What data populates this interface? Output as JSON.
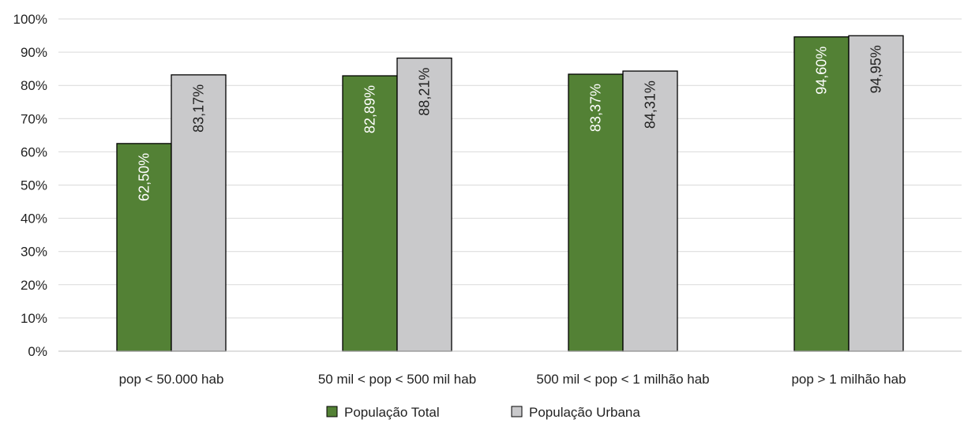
{
  "chart_data": {
    "type": "bar",
    "categories": [
      "pop < 50.000 hab",
      "50 mil < pop < 500 mil hab",
      "500 mil < pop < 1 milhão hab",
      "pop > 1 milhão hab"
    ],
    "series": [
      {
        "name": "População Total",
        "values": [
          62.5,
          82.89,
          83.37,
          94.6
        ],
        "labels": [
          "62,50%",
          "82,89%",
          "83,37%",
          "94,60%"
        ],
        "color": "#538135",
        "label_color": "#ffffff"
      },
      {
        "name": "População Urbana",
        "values": [
          83.17,
          88.21,
          84.31,
          94.95
        ],
        "labels": [
          "83,17%",
          "88,21%",
          "84,31%",
          "94,95%"
        ],
        "color": "#c9c9cb",
        "label_color": "#222222"
      }
    ],
    "ylim": [
      0,
      100
    ],
    "yticks": [
      0,
      10,
      20,
      30,
      40,
      50,
      60,
      70,
      80,
      90,
      100
    ],
    "ytick_labels": [
      "0%",
      "10%",
      "20%",
      "30%",
      "40%",
      "50%",
      "60%",
      "70%",
      "80%",
      "90%",
      "100%"
    ],
    "grid": true,
    "legend_position": "bottom-center",
    "title": "",
    "xlabel": "",
    "ylabel": ""
  }
}
